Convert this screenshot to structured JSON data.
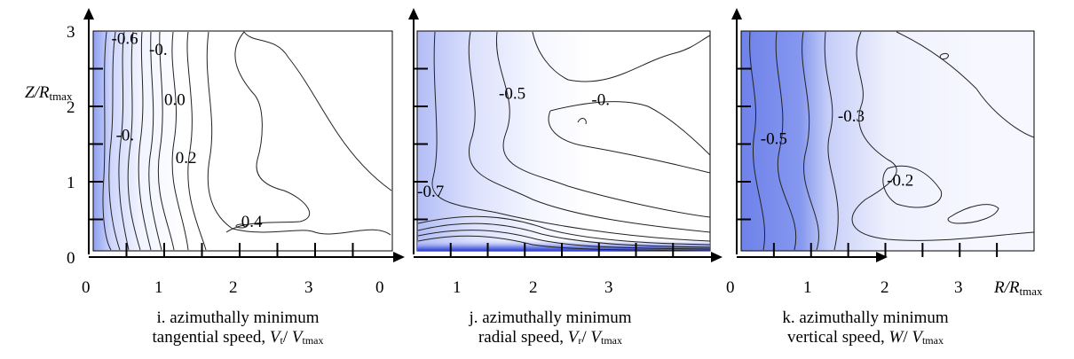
{
  "chart_data": [
    {
      "type": "contour",
      "panel": "i",
      "caption_line1": "i. azimuthally minimum",
      "caption_line2": "tangential speed,",
      "caption_var": "V",
      "caption_var_sub": "t",
      "caption_norm": "V",
      "caption_norm_sub": "tmax",
      "ylabel_var": "Z/R",
      "ylabel_sub": "tmax",
      "x_ticks": [
        "0",
        "1",
        "2",
        "3"
      ],
      "y_ticks": [
        "0",
        "1",
        "2",
        "3"
      ],
      "xlim": [
        0,
        4
      ],
      "ylim": [
        0,
        3
      ],
      "contour_labels": [
        {
          "text": "-0.6",
          "x": 0.3,
          "y": 2.83
        },
        {
          "text": "-0.",
          "x": 0.8,
          "y": 2.68
        },
        {
          "text": "0.0",
          "x": 1.0,
          "y": 2.02
        },
        {
          "text": "-0.",
          "x": 0.36,
          "y": 1.55
        },
        {
          "text": "0.2",
          "x": 1.15,
          "y": 1.25
        },
        {
          "text": "0.4",
          "x": 2.02,
          "y": 0.4
        }
      ]
    },
    {
      "type": "contour",
      "panel": "j",
      "caption_line1": "j. azimuthally minimum",
      "caption_line2": "radial speed,",
      "caption_var": "V",
      "caption_var_sub": "r",
      "caption_norm": "V",
      "caption_norm_sub": "tmax",
      "x_ticks": [
        "0",
        "1",
        "2",
        "3"
      ],
      "xlim": [
        0,
        4
      ],
      "ylim": [
        0,
        3
      ],
      "contour_labels": [
        {
          "text": "-0.5",
          "x": 1.15,
          "y": 2.1
        },
        {
          "text": "-0.",
          "x": 2.4,
          "y": 2.02
        },
        {
          "text": "-0.7",
          "x": 0.05,
          "y": 0.8
        }
      ]
    },
    {
      "type": "contour",
      "panel": "k",
      "caption_line1": "k. azimuthally minimum",
      "caption_line2": "vertical speed,",
      "caption_var": "W",
      "caption_var_sub": "",
      "caption_norm": "V",
      "caption_norm_sub": "tmax",
      "xlabel_var": "R/R",
      "xlabel_sub": "tmax",
      "x_ticks": [
        "0",
        "1",
        "2",
        "3"
      ],
      "xlim": [
        0,
        4
      ],
      "ylim": [
        0,
        3
      ],
      "contour_labels": [
        {
          "text": "-0.5",
          "x": 0.32,
          "y": 1.5
        },
        {
          "text": "-0.3",
          "x": 1.36,
          "y": 1.8
        },
        {
          "text": "-0.2",
          "x": 2.02,
          "y": 0.95
        }
      ]
    }
  ]
}
